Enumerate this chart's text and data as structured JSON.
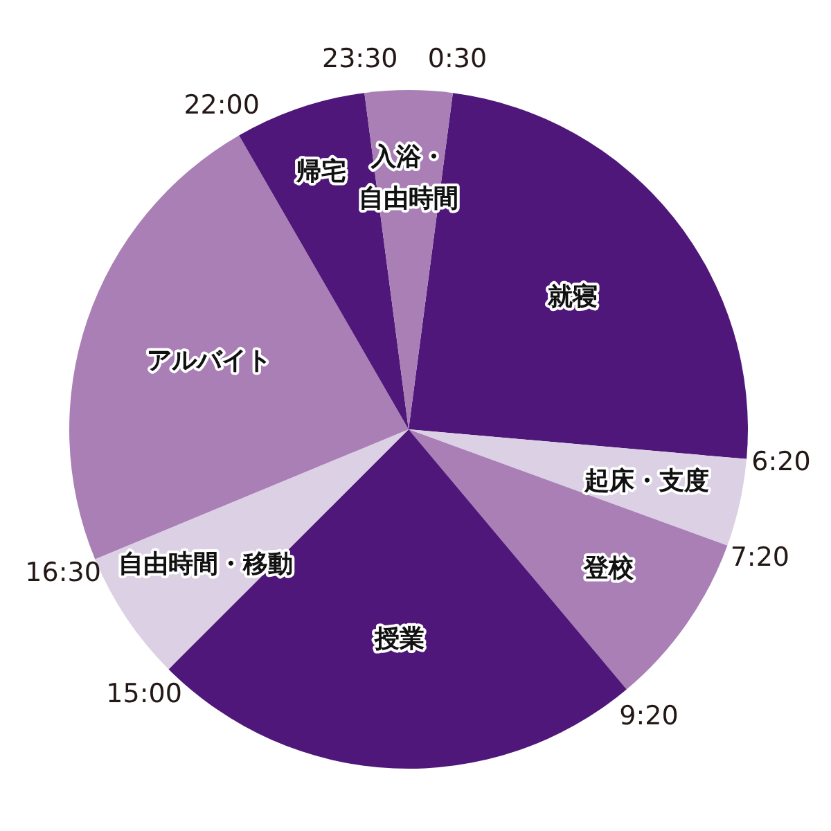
{
  "chart_data": {
    "type": "pie",
    "categories": [
      "就寝",
      "起床・支度",
      "登校",
      "授業",
      "自由時間・移動",
      "アルバイト",
      "帰宅",
      "入浴・自由時間"
    ],
    "values": [
      24.31,
      4.17,
      8.33,
      23.61,
      6.25,
      22.92,
      6.25,
      4.16
    ],
    "colors": [
      "#50177a",
      "#dcd1e4",
      "#a97fb6",
      "#50177a",
      "#dcd1e4",
      "#a97fb6",
      "#50177a",
      "#a97fb6"
    ],
    "annotations": [
      "6:20",
      "7:20",
      "9:20",
      "15:00",
      "16:30",
      "22:00",
      "23:30",
      "0:30"
    ]
  }
}
